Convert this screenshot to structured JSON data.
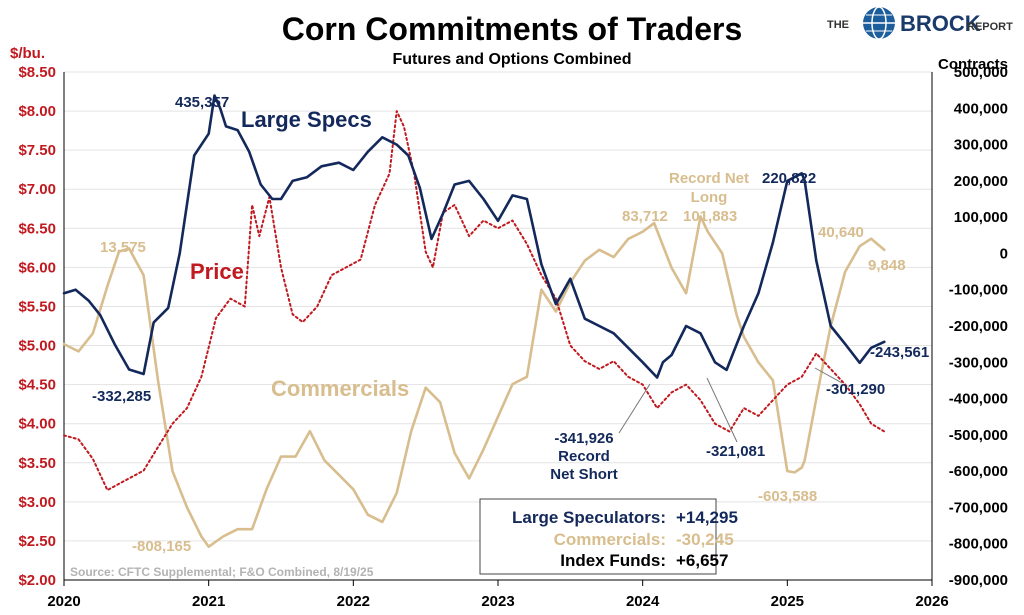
{
  "chart_data": {
    "type": "line",
    "title": "Corn Commitments of Traders",
    "subtitle": "Futures and Options Combined",
    "left_axis": {
      "label": "$/bu.",
      "range": [
        2.0,
        8.5
      ],
      "ticks": [
        "$2.00",
        "$2.50",
        "$3.00",
        "$3.50",
        "$4.00",
        "$4.50",
        "$5.00",
        "$5.50",
        "$6.00",
        "$6.50",
        "$7.00",
        "$7.50",
        "$8.00",
        "$8.50"
      ]
    },
    "right_axis": {
      "label": "Contracts",
      "range": [
        -900000,
        500000
      ],
      "ticks": [
        "-900,000",
        "-800,000",
        "-700,000",
        "-600,000",
        "-500,000",
        "-400,000",
        "-300,000",
        "-200,000",
        "-100,000",
        "0",
        "100,000",
        "200,000",
        "300,000",
        "400,000",
        "500,000"
      ]
    },
    "x_axis": {
      "range": [
        2020,
        2026
      ],
      "ticks": [
        "2020",
        "2021",
        "2022",
        "2023",
        "2024",
        "2025",
        "2026"
      ]
    },
    "grid": true,
    "colors": {
      "large_specs": "#13285b",
      "commercials": "#d8bd8e",
      "price": "#c0191f"
    },
    "series": [
      {
        "name": "Large Specs",
        "axis": "right",
        "style": "solid",
        "x": [
          2020.0,
          2020.08,
          2020.17,
          2020.25,
          2020.35,
          2020.45,
          2020.55,
          2020.62,
          2020.72,
          2020.8,
          2020.9,
          2021.0,
          2021.04,
          2021.08,
          2021.12,
          2021.2,
          2021.28,
          2021.36,
          2021.44,
          2021.5,
          2021.58,
          2021.68,
          2021.78,
          2021.9,
          2022.0,
          2022.1,
          2022.2,
          2022.3,
          2022.38,
          2022.46,
          2022.54,
          2022.62,
          2022.7,
          2022.8,
          2022.9,
          2023.0,
          2023.1,
          2023.2,
          2023.3,
          2023.4,
          2023.5,
          2023.6,
          2023.7,
          2023.8,
          2023.9,
          2024.0,
          2024.1,
          2024.14,
          2024.2,
          2024.3,
          2024.4,
          2024.5,
          2024.58,
          2024.62,
          2024.7,
          2024.8,
          2024.9,
          2025.0,
          2025.1,
          2025.12,
          2025.2,
          2025.3,
          2025.4,
          2025.5,
          2025.58,
          2025.67
        ],
        "values": [
          -110000,
          -100000,
          -130000,
          -170000,
          -250000,
          -320000,
          -332285,
          -190000,
          -150000,
          0,
          270000,
          330000,
          435357,
          400000,
          350000,
          340000,
          280000,
          190000,
          150000,
          150000,
          200000,
          210000,
          240000,
          250000,
          230000,
          280000,
          320000,
          300000,
          270000,
          180000,
          40000,
          110000,
          190000,
          200000,
          150000,
          90000,
          160000,
          150000,
          -30000,
          -140000,
          -70000,
          -180000,
          -200000,
          -220000,
          -260000,
          -300000,
          -341926,
          -300000,
          -280000,
          -200000,
          -220000,
          -300000,
          -321081,
          -280000,
          -200000,
          -110000,
          30000,
          200000,
          220822,
          200000,
          -20000,
          -200000,
          -250000,
          -301290,
          -260000,
          -243561
        ]
      },
      {
        "name": "Commercials",
        "axis": "right",
        "style": "solid",
        "x": [
          2020.0,
          2020.1,
          2020.2,
          2020.3,
          2020.38,
          2020.45,
          2020.55,
          2020.65,
          2020.75,
          2020.85,
          2020.95,
          2021.0,
          2021.1,
          2021.2,
          2021.3,
          2021.4,
          2021.5,
          2021.6,
          2021.7,
          2021.8,
          2021.9,
          2022.0,
          2022.1,
          2022.2,
          2022.3,
          2022.4,
          2022.5,
          2022.6,
          2022.7,
          2022.8,
          2022.9,
          2023.0,
          2023.1,
          2023.2,
          2023.3,
          2023.4,
          2023.5,
          2023.6,
          2023.7,
          2023.8,
          2023.9,
          2024.0,
          2024.08,
          2024.2,
          2024.3,
          2024.4,
          2024.45,
          2024.55,
          2024.65,
          2024.7,
          2024.8,
          2024.9,
          2025.0,
          2025.05,
          2025.1,
          2025.12,
          2025.2,
          2025.3,
          2025.4,
          2025.5,
          2025.58,
          2025.67
        ],
        "values": [
          -250000,
          -270000,
          -220000,
          -90000,
          5000,
          13575,
          -60000,
          -350000,
          -600000,
          -700000,
          -780000,
          -808165,
          -780000,
          -760000,
          -760000,
          -650000,
          -560000,
          -560000,
          -490000,
          -570000,
          -610000,
          -650000,
          -720000,
          -740000,
          -660000,
          -490000,
          -370000,
          -410000,
          -550000,
          -620000,
          -540000,
          -450000,
          -360000,
          -340000,
          -100000,
          -160000,
          -80000,
          -20000,
          10000,
          -10000,
          40000,
          60000,
          83712,
          -40000,
          -110000,
          101883,
          60000,
          0,
          -170000,
          -230000,
          -300000,
          -350000,
          -600000,
          -603588,
          -590000,
          -570000,
          -400000,
          -200000,
          -50000,
          20000,
          40640,
          9848
        ]
      },
      {
        "name": "Price",
        "axis": "left",
        "style": "dotted",
        "x": [
          2020.0,
          2020.1,
          2020.2,
          2020.3,
          2020.35,
          2020.45,
          2020.55,
          2020.65,
          2020.75,
          2020.85,
          2020.95,
          2021.05,
          2021.15,
          2021.25,
          2021.3,
          2021.35,
          2021.42,
          2021.5,
          2021.58,
          2021.65,
          2021.75,
          2021.85,
          2021.95,
          2022.05,
          2022.15,
          2022.25,
          2022.3,
          2022.35,
          2022.42,
          2022.5,
          2022.55,
          2022.62,
          2022.7,
          2022.8,
          2022.9,
          2023.0,
          2023.1,
          2023.2,
          2023.3,
          2023.4,
          2023.5,
          2023.6,
          2023.7,
          2023.8,
          2023.9,
          2024.0,
          2024.1,
          2024.2,
          2024.3,
          2024.4,
          2024.5,
          2024.6,
          2024.7,
          2024.8,
          2024.9,
          2025.0,
          2025.1,
          2025.2,
          2025.3,
          2025.4,
          2025.5,
          2025.58,
          2025.67
        ],
        "values": [
          3.85,
          3.8,
          3.55,
          3.15,
          3.2,
          3.3,
          3.4,
          3.7,
          4.0,
          4.2,
          4.6,
          5.35,
          5.6,
          5.5,
          6.8,
          6.4,
          6.9,
          6.0,
          5.4,
          5.3,
          5.5,
          5.9,
          6.0,
          6.1,
          6.8,
          7.2,
          8.0,
          7.8,
          7.2,
          6.2,
          6.0,
          6.7,
          6.8,
          6.4,
          6.6,
          6.5,
          6.6,
          6.3,
          5.9,
          5.6,
          5.0,
          4.8,
          4.7,
          4.8,
          4.6,
          4.5,
          4.2,
          4.4,
          4.5,
          4.3,
          4.0,
          3.9,
          4.2,
          4.1,
          4.3,
          4.5,
          4.6,
          4.9,
          4.7,
          4.5,
          4.25,
          4.0,
          3.9
        ]
      }
    ],
    "annotations": {
      "specs_label": "Large Specs",
      "comm_label": "Commercials",
      "price_label": "Price",
      "a1": "435,357",
      "a2": "-332,285",
      "a3": "13,575",
      "a4": "-808,165",
      "a5": "83,712",
      "a6": "Record Net",
      "a7": "Long",
      "a8": "101,883",
      "a9": "220,822",
      "a10": "40,640",
      "a11": "9,848",
      "a12": "-243,561",
      "a13": "-301,290",
      "a14": "-341,926",
      "a15": "Record",
      "a16": "Net Short",
      "a17": "-321,081",
      "a18": "-603,588"
    },
    "summary_box": {
      "ls_label": "Large Speculators:",
      "ls_value": "+14,295",
      "cm_label": "Commercials:",
      "cm_value": "-30,245",
      "if_label": "Index Funds:",
      "if_value": "+6,657"
    },
    "source": "Source: CFTC Supplemental; F&O Combined, 8/19/25"
  },
  "logo": {
    "pre": "THE",
    "main": "BROCK",
    "post": "REPORT"
  }
}
